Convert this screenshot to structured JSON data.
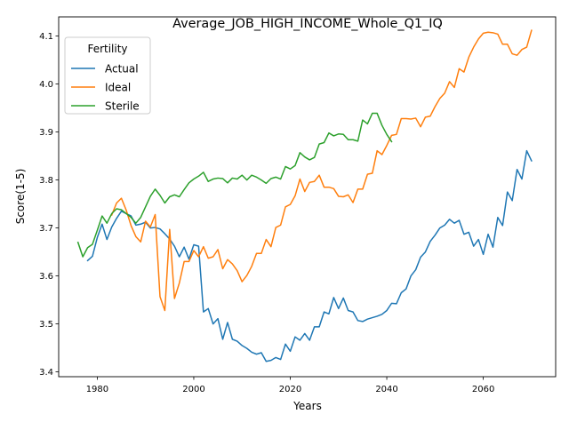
{
  "chart_data": {
    "type": "line",
    "title": "Average_JOB_HIGH_INCOME_Whole_Q1_IQ",
    "xlabel": "Years",
    "ylabel": "Score(1-5)",
    "xlim": [
      1972,
      2075
    ],
    "ylim": [
      3.39,
      4.14
    ],
    "xticks": [
      1980,
      2000,
      2020,
      2040,
      2060
    ],
    "yticks": [
      3.4,
      3.5,
      3.6,
      3.7,
      3.8,
      3.9,
      4.0,
      4.1
    ],
    "ytick_labels": [
      "3.4",
      "3.5",
      "3.6",
      "3.7",
      "3.8",
      "3.9",
      "4.0",
      "4.1"
    ],
    "grid": false,
    "legend": {
      "title": "Fertility",
      "position": "top-left"
    },
    "series": [
      {
        "name": "Actual",
        "color": "#1f77b4",
        "x": [
          1978,
          1979,
          1980,
          1981,
          1982,
          1983,
          1984,
          1985,
          1986,
          1987,
          1988,
          1989,
          1990,
          1991,
          1992,
          1993,
          1994,
          1995,
          1996,
          1997,
          1998,
          1999,
          2000,
          2001,
          2002,
          2003,
          2004,
          2005,
          2006,
          2007,
          2008,
          2009,
          2010,
          2011,
          2012,
          2013,
          2014,
          2015,
          2016,
          2017,
          2018,
          2019,
          2020,
          2021,
          2022,
          2023,
          2024,
          2025,
          2026,
          2027,
          2028,
          2029,
          2030,
          2031,
          2032,
          2033,
          2034,
          2035,
          2036,
          2037,
          2038,
          2039,
          2040,
          2041,
          2042,
          2043,
          2044,
          2045,
          2046,
          2047,
          2048,
          2049,
          2050,
          2051,
          2052,
          2053,
          2054,
          2055,
          2056,
          2057,
          2058,
          2059,
          2060,
          2061,
          2062,
          2063,
          2064,
          2065,
          2066,
          2067,
          2068,
          2069,
          2070
        ],
        "y": [
          3.632,
          3.641,
          3.68,
          3.708,
          3.676,
          3.702,
          3.72,
          3.735,
          3.73,
          3.725,
          3.706,
          3.708,
          3.712,
          3.7,
          3.701,
          3.698,
          3.688,
          3.677,
          3.662,
          3.64,
          3.66,
          3.635,
          3.665,
          3.662,
          3.525,
          3.532,
          3.5,
          3.511,
          3.468,
          3.503,
          3.468,
          3.464,
          3.455,
          3.449,
          3.441,
          3.437,
          3.44,
          3.422,
          3.424,
          3.43,
          3.426,
          3.458,
          3.443,
          3.473,
          3.466,
          3.48,
          3.466,
          3.494,
          3.494,
          3.525,
          3.521,
          3.555,
          3.532,
          3.554,
          3.528,
          3.525,
          3.507,
          3.505,
          3.51,
          3.513,
          3.516,
          3.52,
          3.528,
          3.543,
          3.542,
          3.565,
          3.573,
          3.6,
          3.613,
          3.639,
          3.65,
          3.672,
          3.685,
          3.7,
          3.706,
          3.718,
          3.71,
          3.716,
          3.687,
          3.691,
          3.662,
          3.676,
          3.645,
          3.687,
          3.66,
          3.722,
          3.705,
          3.775,
          3.757,
          3.822,
          3.802,
          3.861,
          3.84
        ]
      },
      {
        "name": "Ideal",
        "color": "#ff7f0e",
        "x": [
          1983,
          1984,
          1985,
          1986,
          1987,
          1988,
          1989,
          1990,
          1991,
          1992,
          1993,
          1994,
          1995,
          1996,
          1997,
          1998,
          1999,
          2000,
          2001,
          2002,
          2003,
          2004,
          2005,
          2006,
          2007,
          2008,
          2009,
          2010,
          2011,
          2012,
          2013,
          2014,
          2015,
          2016,
          2017,
          2018,
          2019,
          2020,
          2021,
          2022,
          2023,
          2024,
          2025,
          2026,
          2027,
          2028,
          2029,
          2030,
          2031,
          2032,
          2033,
          2034,
          2035,
          2036,
          2037,
          2038,
          2039,
          2040,
          2041,
          2042,
          2043,
          2044,
          2045,
          2046,
          2047,
          2048,
          2049,
          2050,
          2051,
          2052,
          2053,
          2054,
          2055,
          2056,
          2057,
          2058,
          2059,
          2060,
          2061,
          2062,
          2063,
          2064,
          2065,
          2066,
          2067,
          2068,
          2069,
          2070
        ],
        "y": [
          3.727,
          3.752,
          3.762,
          3.737,
          3.705,
          3.682,
          3.671,
          3.714,
          3.702,
          3.728,
          3.557,
          3.528,
          3.697,
          3.553,
          3.585,
          3.63,
          3.63,
          3.653,
          3.64,
          3.661,
          3.637,
          3.64,
          3.655,
          3.615,
          3.634,
          3.625,
          3.611,
          3.588,
          3.601,
          3.62,
          3.647,
          3.647,
          3.676,
          3.661,
          3.701,
          3.706,
          3.744,
          3.749,
          3.767,
          3.802,
          3.776,
          3.795,
          3.797,
          3.81,
          3.785,
          3.785,
          3.782,
          3.766,
          3.765,
          3.769,
          3.753,
          3.781,
          3.781,
          3.812,
          3.814,
          3.861,
          3.853,
          3.872,
          3.893,
          3.895,
          3.928,
          3.928,
          3.927,
          3.929,
          3.911,
          3.931,
          3.933,
          3.953,
          3.97,
          3.981,
          4.005,
          3.993,
          4.032,
          4.025,
          4.056,
          4.077,
          4.094,
          4.106,
          4.108,
          4.107,
          4.104,
          4.083,
          4.083,
          4.063,
          4.06,
          4.072,
          4.077,
          4.112
        ]
      },
      {
        "name": "Sterile",
        "color": "#2ca02c",
        "x": [
          1976,
          1977,
          1978,
          1979,
          1980,
          1981,
          1982,
          1983,
          1984,
          1985,
          1986,
          1987,
          1988,
          1989,
          1990,
          1991,
          1992,
          1993,
          1994,
          1995,
          1996,
          1997,
          1998,
          1999,
          2000,
          2001,
          2002,
          2003,
          2004,
          2005,
          2006,
          2007,
          2008,
          2009,
          2010,
          2011,
          2012,
          2013,
          2014,
          2015,
          2016,
          2017,
          2018,
          2019,
          2020,
          2021,
          2022,
          2023,
          2024,
          2025,
          2026,
          2027,
          2028,
          2029,
          2030,
          2031,
          2032,
          2033,
          2034,
          2035,
          2036,
          2037,
          2038,
          2039,
          2040,
          2041
        ],
        "y": [
          3.67,
          3.64,
          3.659,
          3.666,
          3.695,
          3.725,
          3.71,
          3.73,
          3.74,
          3.738,
          3.73,
          3.722,
          3.71,
          3.722,
          3.744,
          3.766,
          3.781,
          3.768,
          3.752,
          3.765,
          3.769,
          3.765,
          3.78,
          3.794,
          3.802,
          3.808,
          3.816,
          3.797,
          3.802,
          3.804,
          3.803,
          3.794,
          3.804,
          3.802,
          3.81,
          3.8,
          3.81,
          3.806,
          3.8,
          3.793,
          3.803,
          3.806,
          3.802,
          3.828,
          3.823,
          3.83,
          3.857,
          3.848,
          3.842,
          3.847,
          3.875,
          3.878,
          3.898,
          3.892,
          3.896,
          3.895,
          3.884,
          3.884,
          3.881,
          3.925,
          3.917,
          3.939,
          3.939,
          3.914,
          3.895,
          3.88
        ]
      }
    ]
  }
}
